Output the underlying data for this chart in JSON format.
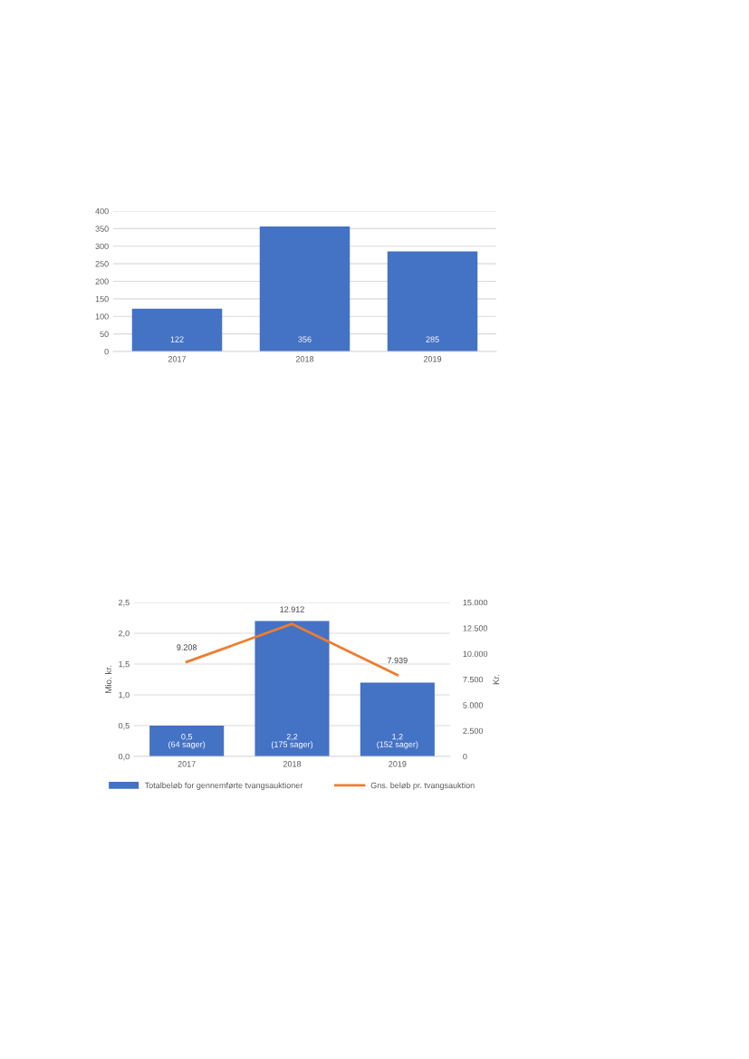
{
  "chart_data": [
    {
      "type": "bar",
      "categories": [
        "2017",
        "2018",
        "2019"
      ],
      "values": [
        122,
        356,
        285
      ],
      "color": "#4472c4",
      "data_labels": true,
      "ylim": [
        0,
        400
      ],
      "yticks": [
        0,
        50,
        100,
        150,
        200,
        250,
        300,
        350,
        400
      ],
      "grid": "y",
      "legend": false
    },
    {
      "type": "bar",
      "categories": [
        "2017",
        "2018",
        "2019"
      ],
      "ylabel": "Mio. kr.",
      "y2label": "Kr.",
      "series": [
        {
          "name": "Totalbeløb for gennemførte tvangsauktioner",
          "type": "bar",
          "color": "#4472c4",
          "values": [
            0.5,
            2.2,
            1.2
          ],
          "value_labels": [
            "0,5\n(64 sager)",
            "2,2\n(175 sager)",
            "1,2\n(152 sager)"
          ]
        },
        {
          "name": "Gns. beløb pr. tvangsauktion",
          "type": "line",
          "axis": "y2",
          "color": "#ed7d31",
          "values": [
            9208,
            12912,
            7939
          ],
          "value_labels": [
            "9.208",
            "12.912",
            "7.939"
          ]
        }
      ],
      "ylim": [
        0,
        2.5
      ],
      "yticks": [
        {
          "value": 0,
          "label": "0,0"
        },
        {
          "value": 0.5,
          "label": "0,5"
        },
        {
          "value": 1.0,
          "label": "1,0"
        },
        {
          "value": 1.5,
          "label": "1,5"
        },
        {
          "value": 2.0,
          "label": "2,0"
        },
        {
          "value": 2.5,
          "label": "2,5"
        }
      ],
      "y2lim": [
        0,
        15000
      ],
      "y2ticks": [
        0,
        {
          "value": 2500,
          "label": "2.500"
        },
        {
          "value": 5000,
          "label": "5.000"
        },
        {
          "value": 7500,
          "label": "7.500"
        },
        {
          "value": 10000,
          "label": "10.000"
        },
        {
          "value": 12500,
          "label": "12.500"
        },
        {
          "value": 15000,
          "label": "15.000"
        }
      ],
      "grid": "y",
      "legend": "bottom"
    }
  ]
}
